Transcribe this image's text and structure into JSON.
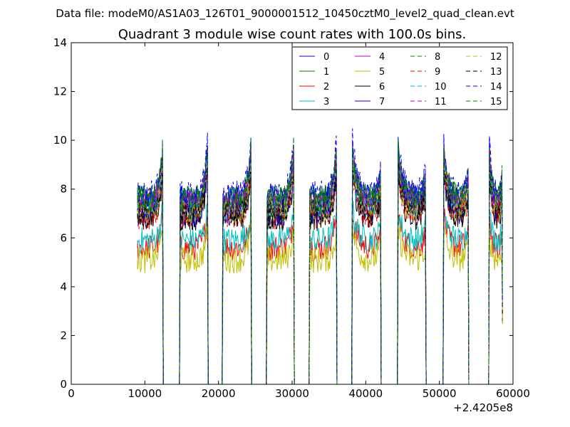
{
  "header": {
    "file_label": "Data file: modeM0/AS1A03_126T01_9000001512_10450cztM0_level2_quad_clean.evt"
  },
  "chart_data": {
    "type": "line",
    "title": "Quadrant 3 module wise count rates with 100.0s bins.",
    "xlabel": "",
    "ylabel": "",
    "x_offset_label": "+2.4205e8",
    "xlim": [
      0,
      60000
    ],
    "ylim": [
      0,
      14
    ],
    "xticks": [
      "0",
      "10000",
      "20000",
      "30000",
      "40000",
      "50000",
      "60000"
    ],
    "yticks": [
      "0",
      "2",
      "4",
      "6",
      "8",
      "10",
      "12",
      "14"
    ],
    "grid": false,
    "legend_position": "top-right",
    "bin_size_s": 100,
    "segments": [
      [
        9000,
        12400
      ],
      [
        14800,
        18500
      ],
      [
        20600,
        24400
      ],
      [
        26600,
        30200
      ],
      [
        32400,
        36000
      ],
      [
        38200,
        42000
      ],
      [
        44400,
        48100
      ],
      [
        50600,
        53900
      ],
      [
        56800,
        58500
      ]
    ],
    "series": [
      {
        "name": "0",
        "color": "#0000ff",
        "dashed": false,
        "level": 7.6,
        "peak": 9.6
      },
      {
        "name": "1",
        "color": "#008000",
        "dashed": false,
        "level": 7.6,
        "peak": 9.5
      },
      {
        "name": "2",
        "color": "#ff0000",
        "dashed": false,
        "level": 5.6,
        "peak": 7.0
      },
      {
        "name": "3",
        "color": "#00bfbf",
        "dashed": false,
        "level": 5.9,
        "peak": 7.2
      },
      {
        "name": "4",
        "color": "#bf00bf",
        "dashed": false,
        "level": 7.3,
        "peak": 9.2
      },
      {
        "name": "5",
        "color": "#bfbf00",
        "dashed": false,
        "level": 5.1,
        "peak": 6.4
      },
      {
        "name": "6",
        "color": "#000000",
        "dashed": false,
        "level": 6.8,
        "peak": 8.8
      },
      {
        "name": "7",
        "color": "#0000ff",
        "dashed": false,
        "level": 7.0,
        "peak": 9.0
      },
      {
        "name": "8",
        "color": "#008000",
        "dashed": true,
        "level": 7.4,
        "peak": 9.4
      },
      {
        "name": "9",
        "color": "#ff0000",
        "dashed": true,
        "level": 6.9,
        "peak": 8.9
      },
      {
        "name": "10",
        "color": "#00bfbf",
        "dashed": true,
        "level": 7.2,
        "peak": 9.1
      },
      {
        "name": "11",
        "color": "#bf00bf",
        "dashed": true,
        "level": 7.5,
        "peak": 9.6
      },
      {
        "name": "12",
        "color": "#bfbf00",
        "dashed": true,
        "level": 7.1,
        "peak": 9.0
      },
      {
        "name": "13",
        "color": "#000000",
        "dashed": true,
        "level": 7.0,
        "peak": 9.0
      },
      {
        "name": "14",
        "color": "#0000ff",
        "dashed": true,
        "level": 7.8,
        "peak": 10.0
      },
      {
        "name": "15",
        "color": "#008000",
        "dashed": true,
        "level": 7.6,
        "peak": 9.7
      }
    ]
  }
}
